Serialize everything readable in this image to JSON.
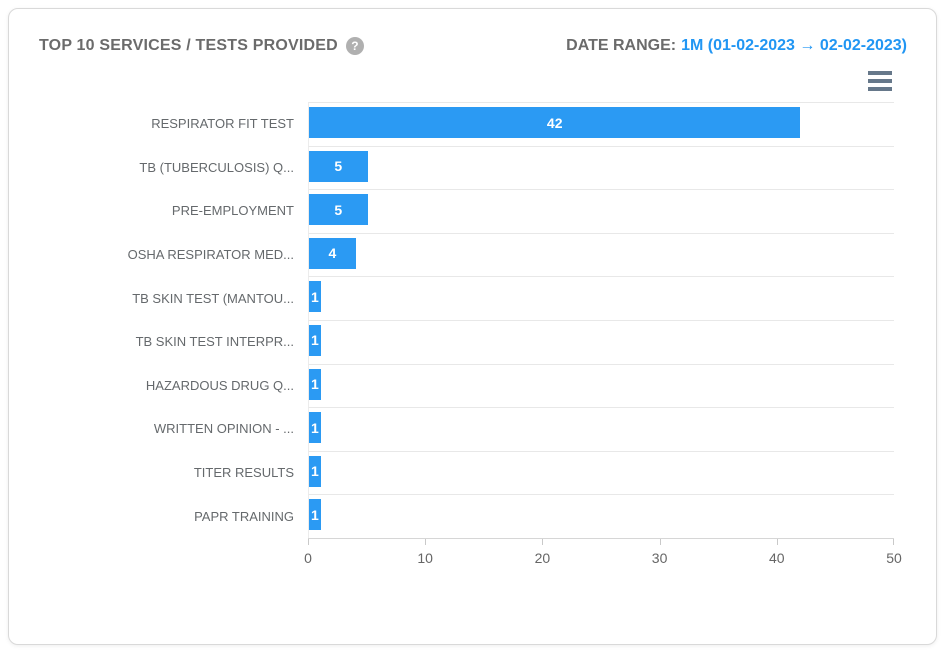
{
  "header": {
    "title": "TOP 10 SERVICES / TESTS PROVIDED",
    "help_glyph": "?",
    "date_range_label": "DATE RANGE:",
    "date_range_value": "1M (01-02-2023 → 02-02-2023)"
  },
  "icons": {
    "help_icon": "question-mark-circle",
    "menu_icon": "hamburger-menu"
  },
  "colors": {
    "bar": "#2b9af3",
    "value_label": "#ffffff",
    "date_range_accent": "#2196f3",
    "title_text": "#6b6b6b",
    "category_text": "#65696c",
    "axis_text": "#666666",
    "gridline": "#e8e8e8",
    "axis_line": "#d6d6d6"
  },
  "chart_data": {
    "type": "bar",
    "orientation": "horizontal",
    "title": "TOP 10 SERVICES / TESTS PROVIDED",
    "categories": [
      "RESPIRATOR FIT TEST",
      "TB (TUBERCULOSIS) Q...",
      "PRE-EMPLOYMENT",
      "OSHA RESPIRATOR MED...",
      "TB SKIN TEST (MANTOU...",
      "TB SKIN TEST INTERPR...",
      "HAZARDOUS DRUG Q...",
      "WRITTEN OPINION - ...",
      "TITER RESULTS",
      "PAPR TRAINING"
    ],
    "values": [
      42,
      5,
      5,
      4,
      1,
      1,
      1,
      1,
      1,
      1
    ],
    "xlabel": "",
    "ylabel": "",
    "xlim": [
      0,
      50
    ],
    "x_ticks": [
      0,
      10,
      20,
      30,
      40,
      50
    ],
    "x_tick_labels": [
      "0",
      "10",
      "20",
      "30",
      "40",
      "50"
    ],
    "grid": true,
    "legend": false,
    "value_labels_inside_bars": true
  }
}
